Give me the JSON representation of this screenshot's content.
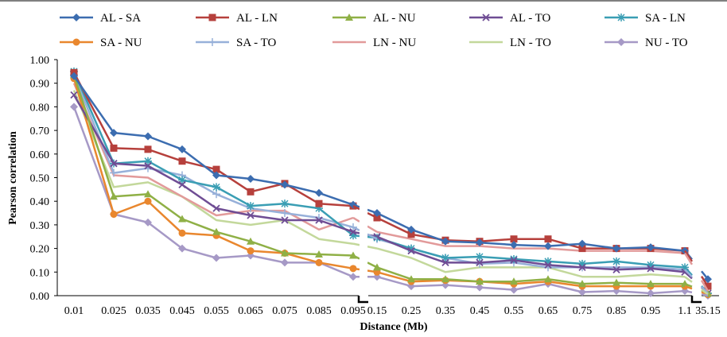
{
  "chart_data": {
    "type": "line",
    "xlabel": "Distance (Mb)",
    "ylabel": "Pearson correlation",
    "ylim": [
      0,
      1
    ],
    "yticks": [
      "0.00",
      "0.10",
      "0.20",
      "0.30",
      "0.40",
      "0.50",
      "0.60",
      "0.70",
      "0.80",
      "0.90",
      "1.00"
    ],
    "grid": false,
    "legend_position": "top",
    "axis_break": "between 0.095 and 0.15, and between 1.1 and 35.15",
    "categories": [
      "0.01",
      "0.025",
      "0.035",
      "0.045",
      "0.055",
      "0.065",
      "0.075",
      "0.085",
      "0.095",
      "0.15",
      "0.25",
      "0.35",
      "0.45",
      "0.55",
      "0.65",
      "0.75",
      "0.85",
      "0.95",
      "1.1",
      "35.15"
    ],
    "segments": [
      [
        0,
        8
      ],
      [
        9,
        18
      ],
      [
        19,
        19
      ]
    ],
    "series": [
      {
        "name": "AL - SA",
        "color": "#3c6db0",
        "marker": "diamond",
        "values": [
          0.93,
          0.69,
          0.675,
          0.62,
          0.51,
          0.495,
          0.47,
          0.435,
          0.385,
          0.35,
          0.28,
          0.23,
          0.225,
          0.215,
          0.21,
          0.22,
          0.2,
          0.205,
          0.19,
          0.07
        ]
      },
      {
        "name": "AL - LN",
        "color": "#b6403c",
        "marker": "square",
        "values": [
          0.945,
          0.625,
          0.62,
          0.57,
          0.535,
          0.44,
          0.475,
          0.39,
          0.38,
          0.33,
          0.26,
          0.235,
          0.23,
          0.24,
          0.24,
          0.2,
          0.2,
          0.2,
          0.19,
          0.04
        ]
      },
      {
        "name": "AL - NU",
        "color": "#8fb046",
        "marker": "triangle",
        "values": [
          0.935,
          0.42,
          0.43,
          0.325,
          0.27,
          0.23,
          0.18,
          0.175,
          0.17,
          0.12,
          0.07,
          0.07,
          0.06,
          0.06,
          0.07,
          0.05,
          0.055,
          0.05,
          0.05,
          0.01
        ]
      },
      {
        "name": "AL - TO",
        "color": "#6f4d94",
        "marker": "x",
        "values": [
          0.85,
          0.56,
          0.55,
          0.47,
          0.37,
          0.34,
          0.32,
          0.32,
          0.27,
          0.25,
          0.19,
          0.14,
          0.14,
          0.15,
          0.13,
          0.12,
          0.11,
          0.115,
          0.1,
          0.01
        ]
      },
      {
        "name": "SA - LN",
        "color": "#3a9eb4",
        "marker": "star",
        "values": [
          0.95,
          0.56,
          0.57,
          0.49,
          0.46,
          0.38,
          0.39,
          0.37,
          0.255,
          0.245,
          0.2,
          0.16,
          0.165,
          0.155,
          0.145,
          0.135,
          0.145,
          0.13,
          0.12,
          0.01
        ]
      },
      {
        "name": "SA - NU",
        "color": "#e9872e",
        "marker": "circle",
        "values": [
          0.92,
          0.345,
          0.4,
          0.265,
          0.255,
          0.19,
          0.18,
          0.14,
          0.115,
          0.1,
          0.06,
          0.065,
          0.06,
          0.05,
          0.06,
          0.04,
          0.04,
          0.04,
          0.04,
          0.005
        ]
      },
      {
        "name": "SA - TO",
        "color": "#97b0d9",
        "marker": "plus",
        "values": [
          0.935,
          0.52,
          0.54,
          0.51,
          0.43,
          0.37,
          0.35,
          0.33,
          0.29,
          0.24,
          0.2,
          0.16,
          0.135,
          0.14,
          0.12,
          0.12,
          0.12,
          0.12,
          0.11,
          0.01
        ]
      },
      {
        "name": "LN - NU",
        "color": "#e29a9a",
        "marker": "none",
        "values": [
          0.9,
          0.51,
          0.5,
          0.42,
          0.34,
          0.36,
          0.36,
          0.28,
          0.33,
          0.27,
          0.24,
          0.21,
          0.21,
          0.2,
          0.2,
          0.19,
          0.19,
          0.19,
          0.18,
          0.02
        ]
      },
      {
        "name": "LN - TO",
        "color": "#c3d89b",
        "marker": "none",
        "values": [
          0.87,
          0.46,
          0.48,
          0.42,
          0.32,
          0.3,
          0.32,
          0.24,
          0.22,
          0.2,
          0.16,
          0.1,
          0.12,
          0.12,
          0.12,
          0.08,
          0.08,
          0.09,
          0.08,
          0.005
        ]
      },
      {
        "name": "NU - TO",
        "color": "#a699c6",
        "marker": "diamond",
        "values": [
          0.8,
          0.345,
          0.31,
          0.2,
          0.16,
          0.17,
          0.14,
          0.14,
          0.08,
          0.08,
          0.04,
          0.045,
          0.035,
          0.025,
          0.05,
          0.015,
          0.02,
          0.01,
          0.02,
          0.0
        ]
      }
    ]
  }
}
